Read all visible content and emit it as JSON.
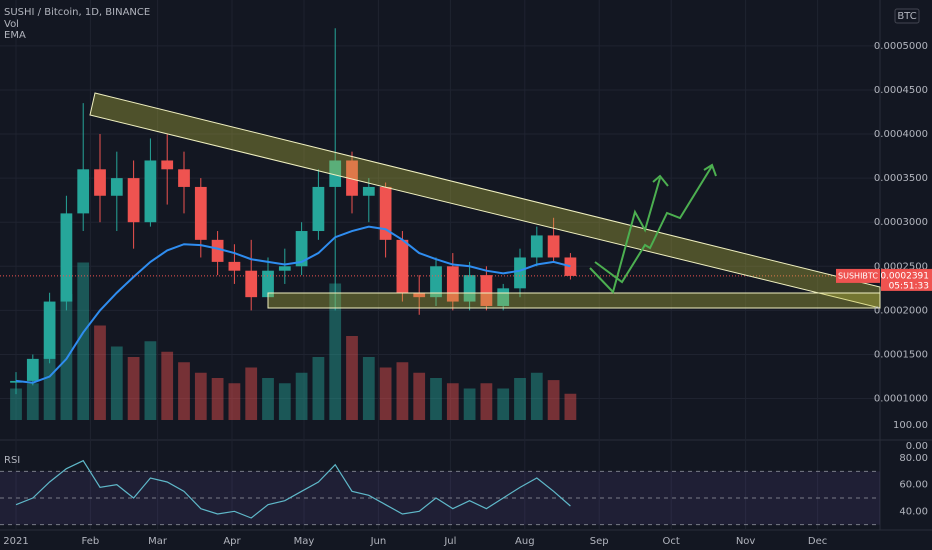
{
  "chart_data": [
    {
      "type": "candlestick",
      "title": "SUSHI / Bitcoin, 1D, BINANCE",
      "currency": "BTC",
      "symbol": "SUSHIBTC",
      "countdown": "05:51:33",
      "last_price": 0.0002391,
      "up_color": "#26a69a",
      "down_color": "#ef5350",
      "x": [
        0,
        7,
        14,
        21,
        28,
        35,
        42,
        49,
        56,
        63,
        70,
        77,
        84,
        91,
        98,
        105,
        112,
        119,
        126,
        133,
        140,
        147,
        154,
        161,
        168,
        175,
        182,
        189,
        196,
        203,
        210,
        217,
        224,
        231
      ],
      "open": [
        0.000118,
        0.00012,
        0.000145,
        0.00021,
        0.00031,
        0.00036,
        0.00033,
        0.00035,
        0.0003,
        0.00037,
        0.00036,
        0.00034,
        0.00028,
        0.000255,
        0.000245,
        0.000215,
        0.000245,
        0.00025,
        0.00029,
        0.00034,
        0.00037,
        0.00033,
        0.00034,
        0.00028,
        0.00022,
        0.000215,
        0.00025,
        0.00021,
        0.00024,
        0.000205,
        0.000225,
        0.00026,
        0.000285,
        0.00026
      ],
      "high": [
        0.00013,
        0.00015,
        0.00022,
        0.00033,
        0.000435,
        0.0004,
        0.00038,
        0.00037,
        0.000395,
        0.0004,
        0.00038,
        0.00035,
        0.00029,
        0.000275,
        0.00028,
        0.00026,
        0.00027,
        0.0003,
        0.00036,
        0.00052,
        0.00038,
        0.00035,
        0.000345,
        0.00029,
        0.00024,
        0.00026,
        0.000265,
        0.000255,
        0.00025,
        0.00023,
        0.00027,
        0.000295,
        0.000305,
        0.000265
      ],
      "low": [
        0.000105,
        0.000115,
        0.00014,
        0.0002,
        0.00029,
        0.0003,
        0.00029,
        0.00027,
        0.000295,
        0.00032,
        0.00031,
        0.00026,
        0.00024,
        0.00023,
        0.0002,
        0.000205,
        0.00023,
        0.00024,
        0.00028,
        0.0002,
        0.00031,
        0.0003,
        0.00026,
        0.00021,
        0.000195,
        0.000205,
        0.0002,
        0.0002,
        0.0002,
        0.0002,
        0.000215,
        0.00025,
        0.000255,
        0.000235
      ],
      "close": [
        0.00012,
        0.000145,
        0.00021,
        0.00031,
        0.00036,
        0.00033,
        0.00035,
        0.0003,
        0.00037,
        0.00036,
        0.00034,
        0.00028,
        0.000255,
        0.000245,
        0.000215,
        0.000245,
        0.00025,
        0.00029,
        0.00034,
        0.00037,
        0.00033,
        0.00034,
        0.00028,
        0.00022,
        0.000215,
        0.00025,
        0.00021,
        0.00024,
        0.000205,
        0.000225,
        0.00026,
        0.000285,
        0.00026,
        0.0002391
      ],
      "series": [
        {
          "name": "Vol",
          "axis": "y2",
          "values": [
            30,
            35,
            60,
            120,
            150,
            90,
            70,
            60,
            75,
            65,
            55,
            45,
            40,
            35,
            50,
            40,
            35,
            45,
            60,
            130,
            80,
            60,
            50,
            55,
            45,
            40,
            35,
            30,
            35,
            30,
            40,
            45,
            38,
            25
          ]
        },
        {
          "name": "EMA",
          "color": "#2f8df0",
          "values": [
            0.00012,
            0.000118,
            0.000125,
            0.000145,
            0.000175,
            0.0002,
            0.00022,
            0.000238,
            0.000255,
            0.000268,
            0.000275,
            0.000274,
            0.00027,
            0.000265,
            0.000258,
            0.000255,
            0.000252,
            0.000255,
            0.000265,
            0.000283,
            0.00029,
            0.000295,
            0.000292,
            0.00028,
            0.000265,
            0.000258,
            0.000252,
            0.00025,
            0.000245,
            0.000242,
            0.000245,
            0.000252,
            0.000255,
            0.00025
          ]
        }
      ],
      "xlim": [
        -6.67,
        360
      ],
      "xticks": [
        {
          "value": 0,
          "label": "2021"
        },
        {
          "value": 31,
          "label": "Feb"
        },
        {
          "value": 59,
          "label": "Mar"
        },
        {
          "value": 90,
          "label": "Apr"
        },
        {
          "value": 120,
          "label": "May"
        },
        {
          "value": 151,
          "label": "Jun"
        },
        {
          "value": 181,
          "label": "Jul"
        },
        {
          "value": 212,
          "label": "Aug"
        },
        {
          "value": 243,
          "label": "Sep"
        },
        {
          "value": 273,
          "label": "Oct"
        },
        {
          "value": 304,
          "label": "Nov"
        },
        {
          "value": 334,
          "label": "Dec"
        }
      ],
      "ylim": [
        5.3e-05,
        0.000552
      ],
      "yticks": [
        {
          "value": 0.0001,
          "label": "0.0001000"
        },
        {
          "value": 0.00015,
          "label": "0.0001500"
        },
        {
          "value": 0.0002,
          "label": "0.0002000"
        },
        {
          "value": 0.00025,
          "label": "0.0002500"
        },
        {
          "value": 0.0003,
          "label": "0.0003000"
        },
        {
          "value": 0.00035,
          "label": "0.0003500"
        },
        {
          "value": 0.0004,
          "label": "0.0004000"
        },
        {
          "value": 0.00045,
          "label": "0.0004500"
        },
        {
          "value": 0.0005,
          "label": "0.0005000"
        }
      ],
      "y2lim": [
        0,
        400
      ],
      "grid": true
    },
    {
      "type": "line",
      "title": "RSI",
      "color": "#5fb8c9",
      "scale_labels": [
        "100.00",
        "0.00"
      ],
      "x": [
        0,
        7,
        14,
        21,
        28,
        35,
        42,
        49,
        56,
        63,
        70,
        77,
        84,
        91,
        98,
        105,
        112,
        119,
        126,
        133,
        140,
        147,
        154,
        161,
        168,
        175,
        182,
        189,
        196,
        203,
        210,
        217,
        224,
        231
      ],
      "values": [
        45,
        50,
        62,
        72,
        78,
        58,
        60,
        50,
        65,
        62,
        55,
        42,
        38,
        40,
        35,
        45,
        48,
        55,
        62,
        75,
        55,
        52,
        45,
        38,
        40,
        50,
        42,
        48,
        42,
        50,
        58,
        65,
        55,
        44
      ],
      "ylim": [
        26,
        86
      ],
      "levels": [
        70,
        50,
        30
      ],
      "yticks": [
        {
          "value": 40,
          "label": "40.00"
        },
        {
          "value": 60,
          "label": "60.00"
        },
        {
          "value": 80,
          "label": "80.00"
        }
      ]
    }
  ]
}
